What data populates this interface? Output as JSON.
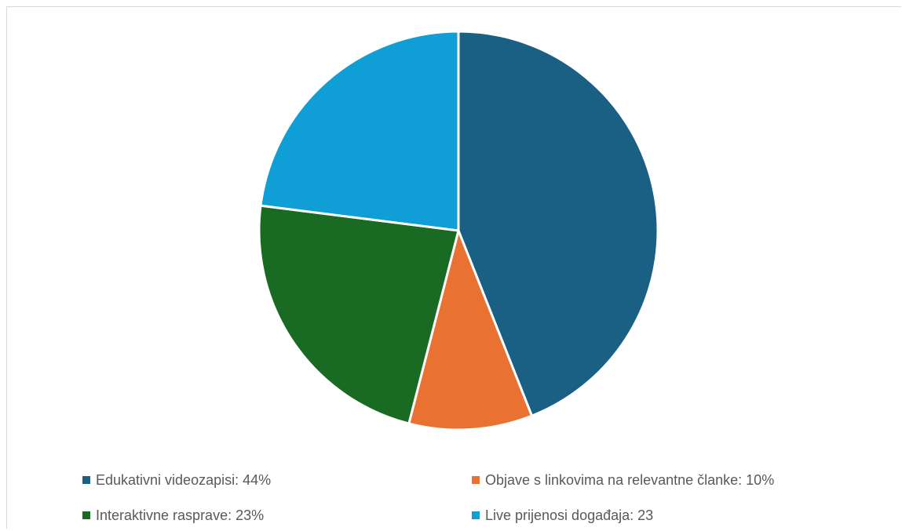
{
  "chart_data": {
    "type": "pie",
    "title": "",
    "slices": [
      {
        "label": "Edukativni videozapisi",
        "value": 44,
        "color": "#1a5f84"
      },
      {
        "label": "Objave s linkovima na relevantne članke",
        "value": 10,
        "color": "#e97132"
      },
      {
        "label": "Interaktivne rasprave",
        "value": 23,
        "color": "#196b24"
      },
      {
        "label": "Live prijenosi događaja",
        "value": 23,
        "color": "#0f9ed5"
      }
    ],
    "legend": {
      "placement": "bottom",
      "entries": [
        "Edukativni videozapisi: 44%",
        "Objave s linkovima na relevantne članke: 10%",
        "Interaktivne rasprave: 23%",
        "Live prijenosi događaja: 23"
      ]
    }
  }
}
